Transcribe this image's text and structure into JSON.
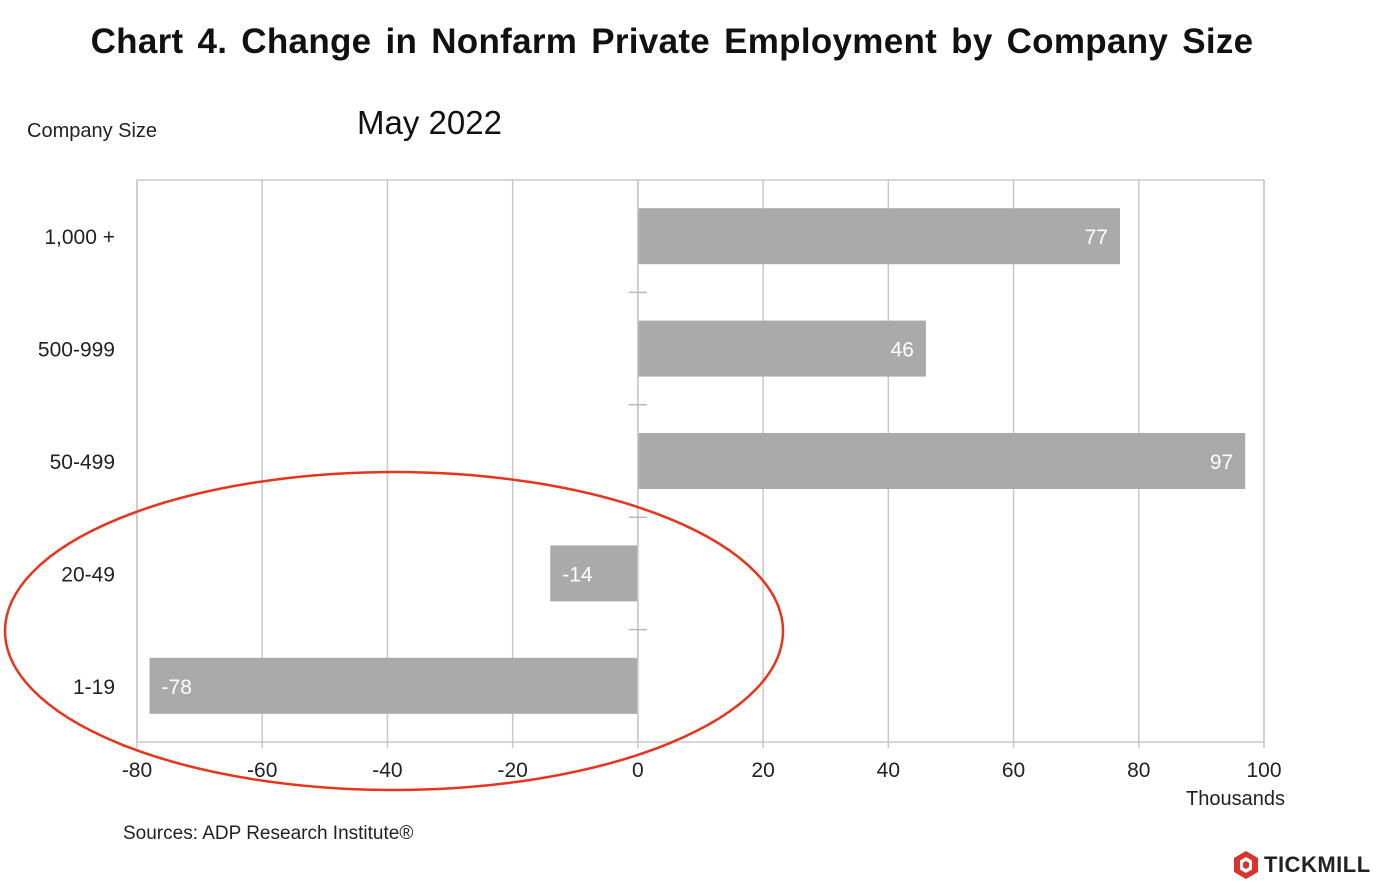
{
  "chart_data": {
    "type": "bar",
    "orientation": "horizontal",
    "title": "Chart 4. Change in Nonfarm Private Employment by Company Size",
    "subtitle": "May 2022",
    "ylabel": "Company Size",
    "xlabel": "Thousands",
    "categories": [
      "1,000 +",
      "500-999",
      "50-499",
      "20-49",
      "1-19"
    ],
    "values": [
      77,
      46,
      97,
      -14,
      -78
    ],
    "data_labels": [
      "77",
      "46",
      "97",
      "-14",
      "-78"
    ],
    "xlim": [
      -80,
      100
    ],
    "xticks": [
      -80,
      -60,
      -40,
      -20,
      0,
      20,
      40,
      60,
      80,
      100
    ],
    "xtick_labels": [
      "-80",
      "-60",
      "-40",
      "-20",
      "0",
      "20",
      "40",
      "60",
      "80",
      "100"
    ],
    "grid": "vertical",
    "bar_color": "#aaaaaa",
    "annotation": {
      "shape": "ellipse",
      "color": "#e8341c",
      "highlights": [
        "20-49",
        "1-19"
      ]
    }
  },
  "source": "Sources: ADP Research Institute®",
  "brand": {
    "name": "TICKMILL",
    "icon": "tickmill-logo-icon",
    "color": "#d6342c"
  }
}
